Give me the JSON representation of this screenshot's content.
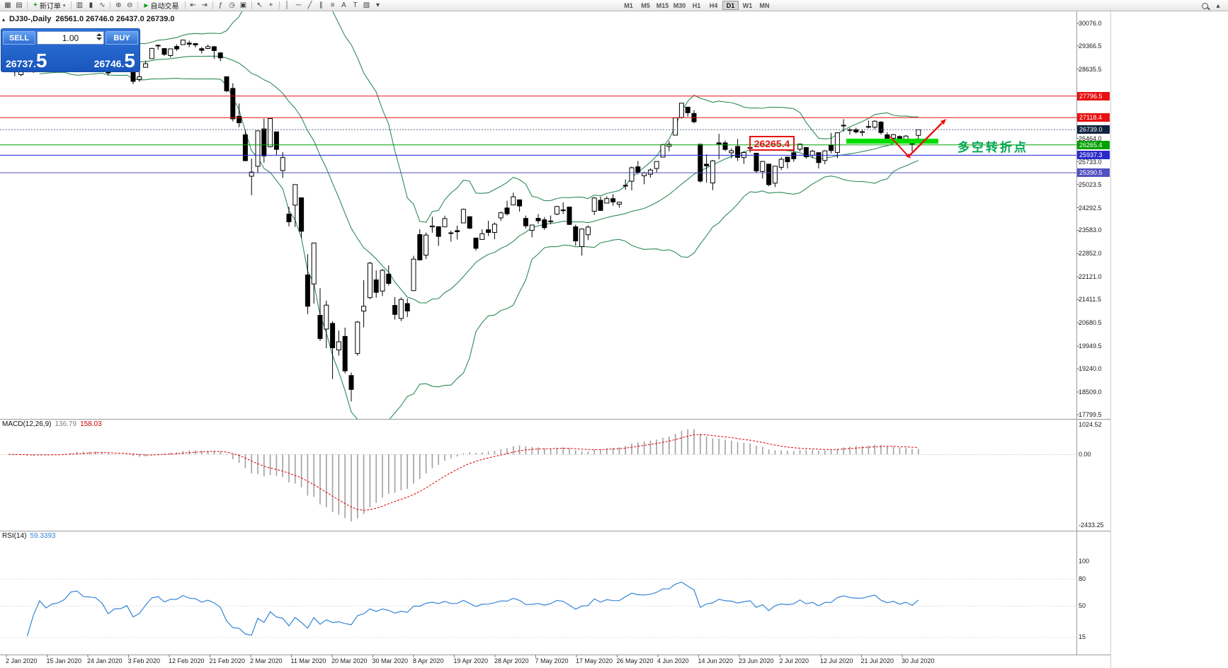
{
  "toolbar": {
    "new_order_label": "新订单",
    "new_order_icon_glyph": "+",
    "caret_glyph": "▾",
    "autotrading_label": "自动交易",
    "autotrading_icon_glyph": "▶",
    "collapse_glyph": "▴",
    "icon_groups": {
      "a": [
        {
          "name": "new-chart-icon",
          "glyph": "▦"
        },
        {
          "name": "chart-profiles-icon",
          "glyph": "▤"
        }
      ],
      "b": [
        {
          "name": "bar-chart-icon",
          "glyph": "▥"
        },
        {
          "name": "candlestick-chart-icon",
          "glyph": "▮"
        },
        {
          "name": "line-chart-icon",
          "glyph": "∿"
        },
        {
          "sep": true
        },
        {
          "name": "zoom-in-icon",
          "glyph": "⊕"
        },
        {
          "name": "zoom-out-icon",
          "glyph": "⊖"
        }
      ],
      "c": [
        {
          "name": "chart-shift-icon",
          "glyph": "⇤"
        },
        {
          "name": "auto-scroll-icon",
          "glyph": "⇥"
        },
        {
          "sep": true
        },
        {
          "name": "indicators-icon",
          "glyph": "ƒ"
        },
        {
          "name": "periods-icon",
          "glyph": "◷"
        },
        {
          "name": "templates-icon",
          "glyph": "▣"
        },
        {
          "sep": true
        },
        {
          "name": "cursor-icon",
          "glyph": "↖"
        },
        {
          "name": "crosshair-icon",
          "glyph": "+"
        },
        {
          "sep": true
        },
        {
          "name": "vertical-line-icon",
          "glyph": "│"
        },
        {
          "name": "horizontal-line-icon",
          "glyph": "─"
        },
        {
          "name": "trendline-icon",
          "glyph": "╱"
        },
        {
          "name": "channel-icon",
          "glyph": "∥"
        },
        {
          "name": "fibonacci-icon",
          "glyph": "≡"
        },
        {
          "name": "text-icon",
          "glyph": "A"
        },
        {
          "name": "label-icon",
          "glyph": "T"
        },
        {
          "name": "shapes-icon",
          "glyph": "▧"
        },
        {
          "name": "more-tools-icon",
          "glyph": "▾"
        }
      ]
    },
    "timeframes": {
      "items": [
        "M1",
        "M5",
        "M15",
        "M30",
        "H1",
        "H4",
        "D1",
        "W1",
        "MN"
      ],
      "active": "D1"
    }
  },
  "chart_header": {
    "marker_glyph": "▴",
    "symbol_period": "DJ30-,Daily",
    "ohlc": "26561.0 26746.0 26437.0 26739.0"
  },
  "one_click": {
    "sell_label": "SELL",
    "buy_label": "BUY",
    "volume": "1.00",
    "sell_price": {
      "main": "26737.",
      "big": "5"
    },
    "buy_price": {
      "main": "26746.",
      "big": "5"
    }
  },
  "annotations": {
    "price_box": "26265.4",
    "cn_note": "多空转折点",
    "support_bar_color": "#00dd00",
    "arrow_color": "#e81010"
  },
  "chart_data": {
    "type": "candlestick",
    "symbol": "DJ30-",
    "period": "Daily",
    "last_ohlc": {
      "open": 26561.0,
      "high": 26746.0,
      "low": 26437.0,
      "close": 26739.0
    },
    "y_axis_labels": [
      "30076.0",
      "29366.5",
      "28635.5",
      "26464.0",
      "25733.0",
      "25023.5",
      "24292.5",
      "23583.0",
      "22852.0",
      "22121.0",
      "21411.5",
      "20680.5",
      "19949.5",
      "19240.0",
      "18509.0",
      "17799.5"
    ],
    "x_axis_labels": [
      "2 Jan 2020",
      "15 Jan 2020",
      "24 Jan 2020",
      "3 Feb 2020",
      "12 Feb 2020",
      "21 Feb 2020",
      "2 Mar 2020",
      "11 Mar 2020",
      "20 Mar 2020",
      "30 Mar 2020",
      "8 Apr 2020",
      "19 Apr 2020",
      "28 Apr 2020",
      "7 May 2020",
      "17 May 2020",
      "26 May 2020",
      "4 Jun 2020",
      "14 Jun 2020",
      "23 Jun 2020",
      "2 Jul 2020",
      "12 Jul 2020",
      "21 Jul 2020",
      "30 Jul 2020"
    ],
    "levels": [
      {
        "value": 27796.5,
        "label": "27796.5",
        "line": "#e81010",
        "badge": "#e81010"
      },
      {
        "value": 27118.4,
        "label": "27118.4",
        "line": "#e81010",
        "badge": "#e81010"
      },
      {
        "value": 26739.0,
        "label": "26739.0",
        "line": "#5a6a8a",
        "badge": "#10233f",
        "dashed": true
      },
      {
        "value": 26265.4,
        "label": "26265.4",
        "line": "#00a000",
        "badge": "#00a000"
      },
      {
        "value": 25937.3,
        "label": "25937.3",
        "line": "#2020dd",
        "badge": "#2a2ac8"
      },
      {
        "value": 25390.5,
        "label": "25390.5",
        "line": "#5050c0",
        "badge": "#5050c0"
      }
    ],
    "indicators": {
      "bollinger": {
        "period": 20,
        "deviation": 2,
        "color": "#2e8b57"
      },
      "macd": {
        "label": "MACD(12,26,9)",
        "main_value": "136.79",
        "signal_value": "158.03",
        "axis_labels": [
          "1024.52",
          "0.00",
          "-2433.25"
        ],
        "histogram_color": "#a0a0a0",
        "signal_color": "#dd0000"
      },
      "rsi": {
        "label": "RSI(14)",
        "value": "59.3393",
        "axis_labels": [
          "100",
          "80",
          "50",
          "15"
        ],
        "level_lines": [
          80,
          50,
          15
        ],
        "color": "#3585d6"
      }
    },
    "candles": [
      [
        28639,
        28872,
        28565,
        28869
      ],
      [
        28554,
        28716,
        28418,
        28634
      ],
      [
        28465,
        28708,
        28418,
        28703
      ],
      [
        28640,
        28685,
        28540,
        28583
      ],
      [
        28556,
        28757,
        28522,
        28745
      ],
      [
        28851,
        28988,
        28812,
        28957
      ],
      [
        28962,
        29009,
        28760,
        28824
      ],
      [
        28863,
        28910,
        28780,
        28907
      ],
      [
        28910,
        29054,
        28862,
        28939
      ],
      [
        28917,
        29127,
        28897,
        29030
      ],
      [
        29108,
        29300,
        29103,
        29297
      ],
      [
        29329,
        29374,
        29230,
        29348
      ],
      [
        29269,
        29339,
        29149,
        29196
      ],
      [
        29296,
        29320,
        29152,
        29186
      ],
      [
        29100,
        29189,
        28966,
        29160
      ],
      [
        29203,
        29230,
        28843,
        28990
      ],
      [
        28542,
        28671,
        28440,
        28536
      ],
      [
        28594,
        28823,
        28575,
        28723
      ],
      [
        28820,
        28894,
        28657,
        28734
      ],
      [
        28640,
        28875,
        28561,
        28859
      ],
      [
        28813,
        28813,
        28169,
        28256
      ],
      [
        28320,
        28630,
        28245,
        28400
      ],
      [
        28697,
        28905,
        28697,
        28808
      ],
      [
        28970,
        29308,
        28970,
        29291
      ],
      [
        29388,
        29409,
        29247,
        29380
      ],
      [
        29286,
        29286,
        29056,
        29103
      ],
      [
        29067,
        29278,
        29008,
        29277
      ],
      [
        29351,
        29415,
        29211,
        29276
      ],
      [
        29407,
        29568,
        29407,
        29551
      ],
      [
        29457,
        29535,
        29332,
        29423
      ],
      [
        29440,
        29463,
        29322,
        29398
      ],
      [
        29282,
        29330,
        29133,
        29232
      ],
      [
        29288,
        29409,
        29265,
        29348
      ],
      [
        29343,
        29368,
        28960,
        29220
      ],
      [
        29148,
        29178,
        28892,
        28992
      ],
      [
        28403,
        28403,
        27912,
        27961
      ],
      [
        28036,
        28195,
        26998,
        27081
      ],
      [
        27159,
        27561,
        26816,
        26958
      ],
      [
        26580,
        26738,
        25752,
        25767
      ],
      [
        25280,
        25833,
        24681,
        25409
      ],
      [
        25590,
        26706,
        25392,
        26703
      ],
      [
        26763,
        27085,
        25707,
        25917
      ],
      [
        26204,
        27102,
        26187,
        27090
      ],
      [
        26672,
        26672,
        25944,
        26121
      ],
      [
        25458,
        26037,
        25227,
        25864
      ],
      [
        24093,
        24322,
        23707,
        23851
      ],
      [
        24372,
        25020,
        23690,
        25018
      ],
      [
        24604,
        24604,
        23328,
        23553
      ],
      [
        22184,
        22837,
        20957,
        21200
      ],
      [
        21900,
        23189,
        21285,
        23185
      ],
      [
        20917,
        21768,
        20116,
        20188
      ],
      [
        20487,
        21379,
        19882,
        21237
      ],
      [
        20664,
        20730,
        18917,
        19899
      ],
      [
        19830,
        20442,
        19649,
        20087
      ],
      [
        20255,
        20531,
        19094,
        19174
      ],
      [
        19028,
        19121,
        18213,
        18592
      ],
      [
        19722,
        20738,
        19649,
        20705
      ],
      [
        21050,
        22020,
        20538,
        21200
      ],
      [
        21468,
        22595,
        21427,
        22552
      ],
      [
        22028,
        22327,
        21469,
        21637
      ],
      [
        21678,
        22378,
        21522,
        22327
      ],
      [
        22208,
        22482,
        21852,
        21917
      ],
      [
        21227,
        21487,
        20784,
        20944
      ],
      [
        20819,
        21477,
        20735,
        21413
      ],
      [
        21285,
        21447,
        20863,
        21053
      ],
      [
        21693,
        22783,
        21693,
        22680
      ],
      [
        23449,
        23617,
        22634,
        22654
      ],
      [
        22805,
        23513,
        22682,
        23434
      ],
      [
        23690,
        24009,
        23504,
        23719
      ],
      [
        23698,
        23698,
        23096,
        23391
      ],
      [
        23690,
        24041,
        23690,
        23950
      ],
      [
        23504,
        23577,
        23229,
        23504
      ],
      [
        23574,
        23731,
        23297,
        23538
      ],
      [
        23816,
        24264,
        23816,
        24242
      ],
      [
        24012,
        24012,
        23628,
        23650
      ],
      [
        23341,
        23341,
        22942,
        23019
      ],
      [
        23297,
        23613,
        23297,
        23476
      ],
      [
        23600,
        23885,
        23404,
        23515
      ],
      [
        23515,
        23829,
        23305,
        23775
      ],
      [
        23974,
        24171,
        23881,
        24134
      ],
      [
        24284,
        24512,
        24048,
        24102
      ],
      [
        24378,
        24765,
        24378,
        24634
      ],
      [
        24540,
        24540,
        24168,
        24346
      ],
      [
        23957,
        24044,
        23645,
        23724
      ],
      [
        23581,
        23762,
        23361,
        23750
      ],
      [
        23961,
        24094,
        23784,
        23883
      ],
      [
        23913,
        23998,
        23599,
        23665
      ],
      [
        23871,
        24049,
        23778,
        23876
      ],
      [
        24092,
        24349,
        24059,
        24331
      ],
      [
        24216,
        24460,
        24093,
        24222
      ],
      [
        24312,
        24312,
        23755,
        23765
      ],
      [
        23693,
        23760,
        23096,
        23248
      ],
      [
        23073,
        23635,
        22790,
        23625
      ],
      [
        23445,
        23735,
        23277,
        23685
      ],
      [
        24182,
        24625,
        24059,
        24597
      ],
      [
        24527,
        24634,
        24195,
        24207
      ],
      [
        24437,
        24649,
        24437,
        24576
      ],
      [
        24577,
        24719,
        24356,
        24474
      ],
      [
        24402,
        24482,
        24294,
        24465
      ],
      [
        24995,
        25179,
        24854,
        24995
      ],
      [
        25124,
        25587,
        24834,
        25548
      ],
      [
        25575,
        25759,
        25332,
        25401
      ],
      [
        25294,
        25425,
        25031,
        25383
      ],
      [
        25343,
        25527,
        25236,
        25475
      ],
      [
        25524,
        25747,
        25402,
        25743
      ],
      [
        25879,
        26297,
        25879,
        26270
      ],
      [
        26218,
        26384,
        26062,
        26282
      ],
      [
        26569,
        27111,
        26569,
        27111
      ],
      [
        27126,
        27580,
        27086,
        27572
      ],
      [
        27447,
        27447,
        27151,
        27272
      ],
      [
        27251,
        27355,
        26938,
        26990
      ],
      [
        26282,
        26294,
        25082,
        25128
      ],
      [
        25659,
        25965,
        25078,
        25605
      ],
      [
        25069,
        25790,
        24843,
        25763
      ],
      [
        26326,
        26611,
        25811,
        26290
      ],
      [
        26326,
        26400,
        26068,
        26120
      ],
      [
        26016,
        26154,
        25848,
        26080
      ],
      [
        26213,
        26451,
        25759,
        25871
      ],
      [
        25865,
        26059,
        25667,
        26025
      ],
      [
        26180,
        26314,
        26022,
        26156
      ],
      [
        26003,
        26003,
        25376,
        25445
      ],
      [
        25430,
        25757,
        25210,
        25745
      ],
      [
        25660,
        25660,
        24971,
        25015
      ],
      [
        25063,
        25600,
        24941,
        25595
      ],
      [
        25561,
        25880,
        25475,
        25812
      ],
      [
        25880,
        25880,
        25523,
        25734
      ],
      [
        26016,
        26204,
        25731,
        25827
      ],
      [
        26128,
        26306,
        26055,
        26287
      ],
      [
        26183,
        26183,
        25836,
        25890
      ],
      [
        25936,
        26109,
        25849,
        26067
      ],
      [
        26020,
        26020,
        25523,
        25706
      ],
      [
        25772,
        26098,
        25655,
        26075
      ],
      [
        26263,
        26639,
        25996,
        26085
      ],
      [
        26028,
        26658,
        25847,
        26642
      ],
      [
        26879,
        27071,
        26680,
        26870
      ],
      [
        26740,
        26796,
        26585,
        26734
      ],
      [
        26742,
        26802,
        26619,
        26672
      ],
      [
        26654,
        26758,
        26536,
        26680
      ],
      [
        26827,
        27027,
        26780,
        26840
      ],
      [
        26817,
        27035,
        26762,
        27005
      ],
      [
        26980,
        27011,
        26587,
        26652
      ],
      [
        26579,
        26661,
        26394,
        26469
      ],
      [
        26474,
        26601,
        26384,
        26584
      ],
      [
        26527,
        26560,
        26326,
        26379
      ],
      [
        26412,
        26573,
        26351,
        26539
      ],
      [
        26313,
        26388,
        26063,
        26313
      ],
      [
        26561,
        26746,
        26437,
        26739
      ]
    ]
  }
}
